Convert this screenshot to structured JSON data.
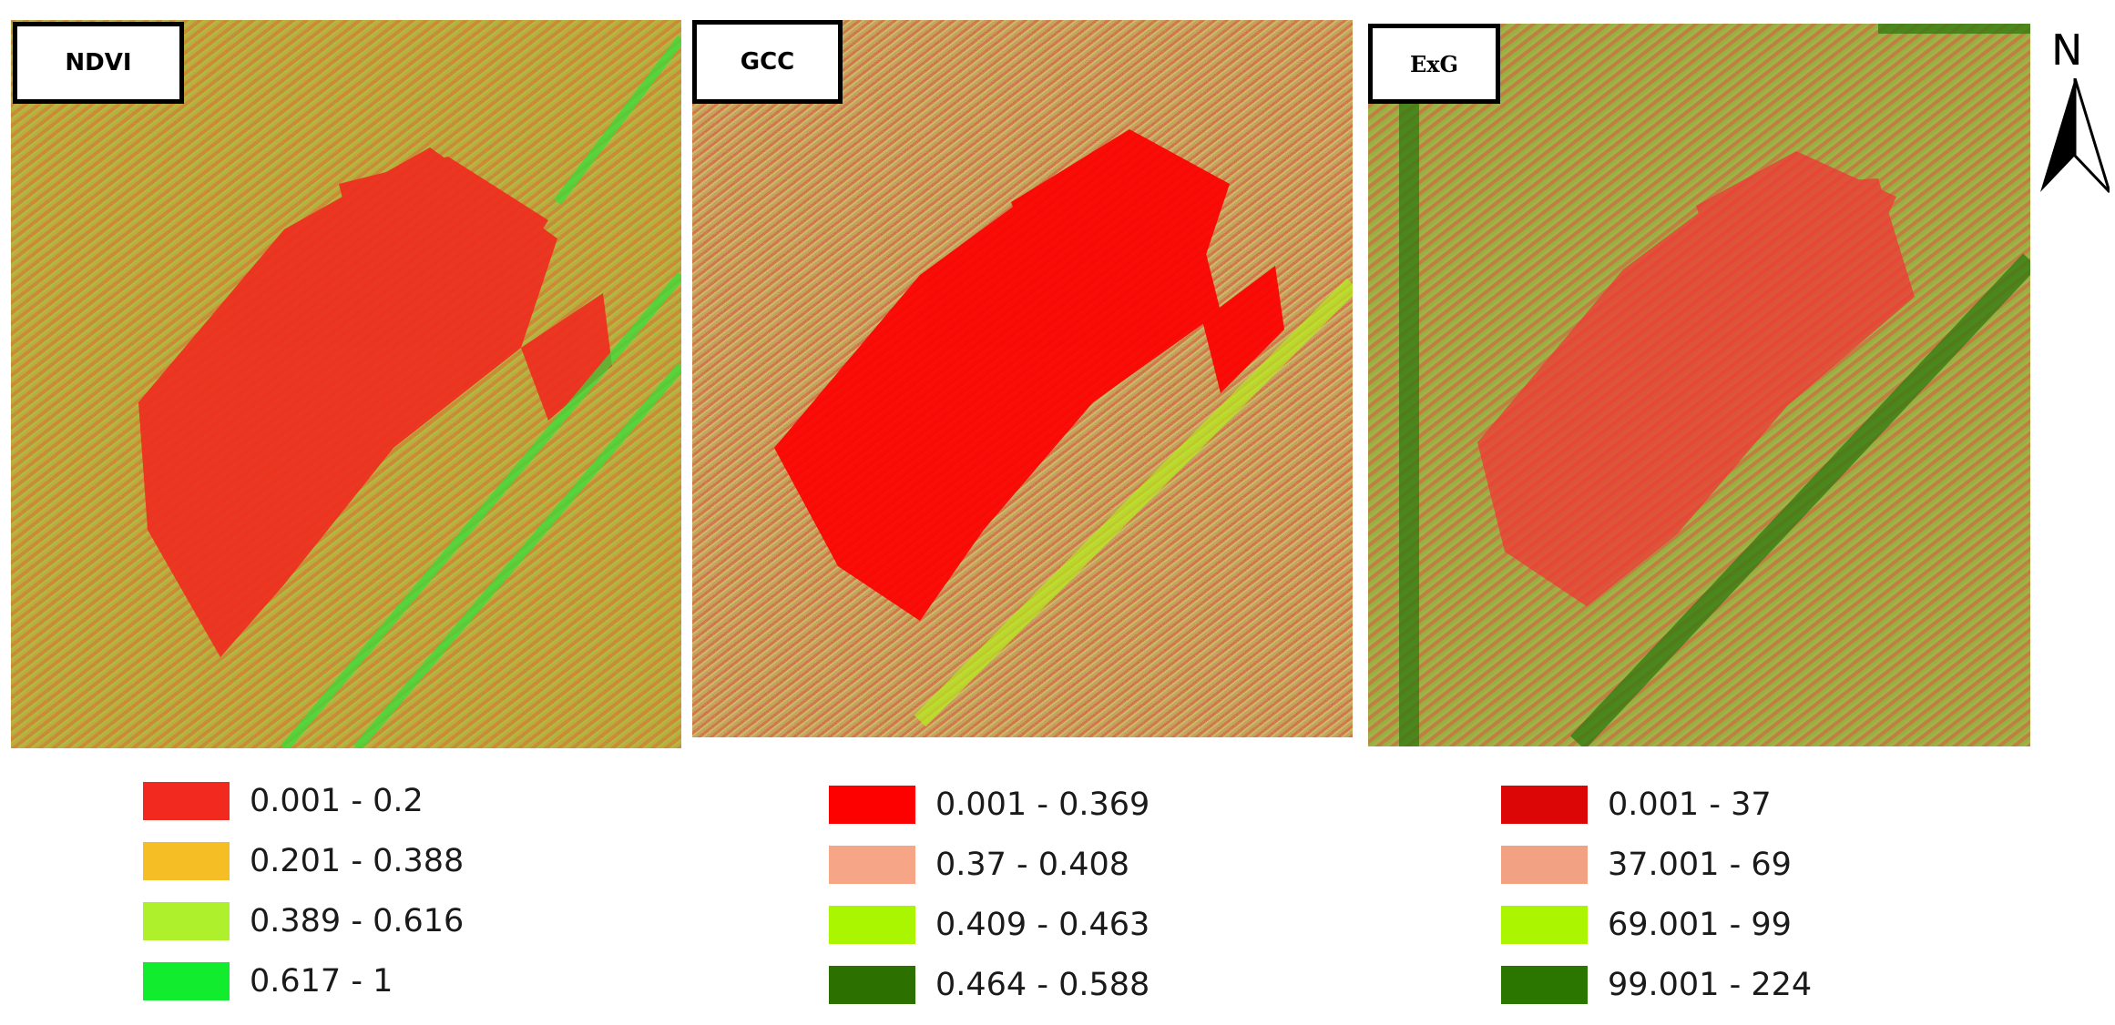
{
  "panels": [
    {
      "id": "ndvi",
      "title": "NDVI",
      "legend": [
        {
          "range": "0.001 - 0.2",
          "color": "#f2291f"
        },
        {
          "range": "0.201 - 0.388",
          "color": "#f5be24"
        },
        {
          "range": "0.389 - 0.616",
          "color": "#aef02c"
        },
        {
          "range": "0.617 - 1",
          "color": "#12ec2f"
        }
      ]
    },
    {
      "id": "gcc",
      "title": "GCC",
      "legend": [
        {
          "range": "0.001 - 0.369",
          "color": "#fd0000"
        },
        {
          "range": "0.37 - 0.408",
          "color": "#f7a587"
        },
        {
          "range": "0.409 - 0.463",
          "color": "#a9f600"
        },
        {
          "range": "0.464 - 0.588",
          "color": "#2c7100"
        }
      ]
    },
    {
      "id": "exg",
      "title": "ExG",
      "legend": [
        {
          "range": "0.001 - 37",
          "color": "#dc0606"
        },
        {
          "range": "37.001 - 69",
          "color": "#f2a183"
        },
        {
          "range": "69.001 - 99",
          "color": "#abf500"
        },
        {
          "range": "99.001 - 224",
          "color": "#2a7600"
        }
      ]
    }
  ],
  "north_arrow": {
    "label": "N"
  }
}
